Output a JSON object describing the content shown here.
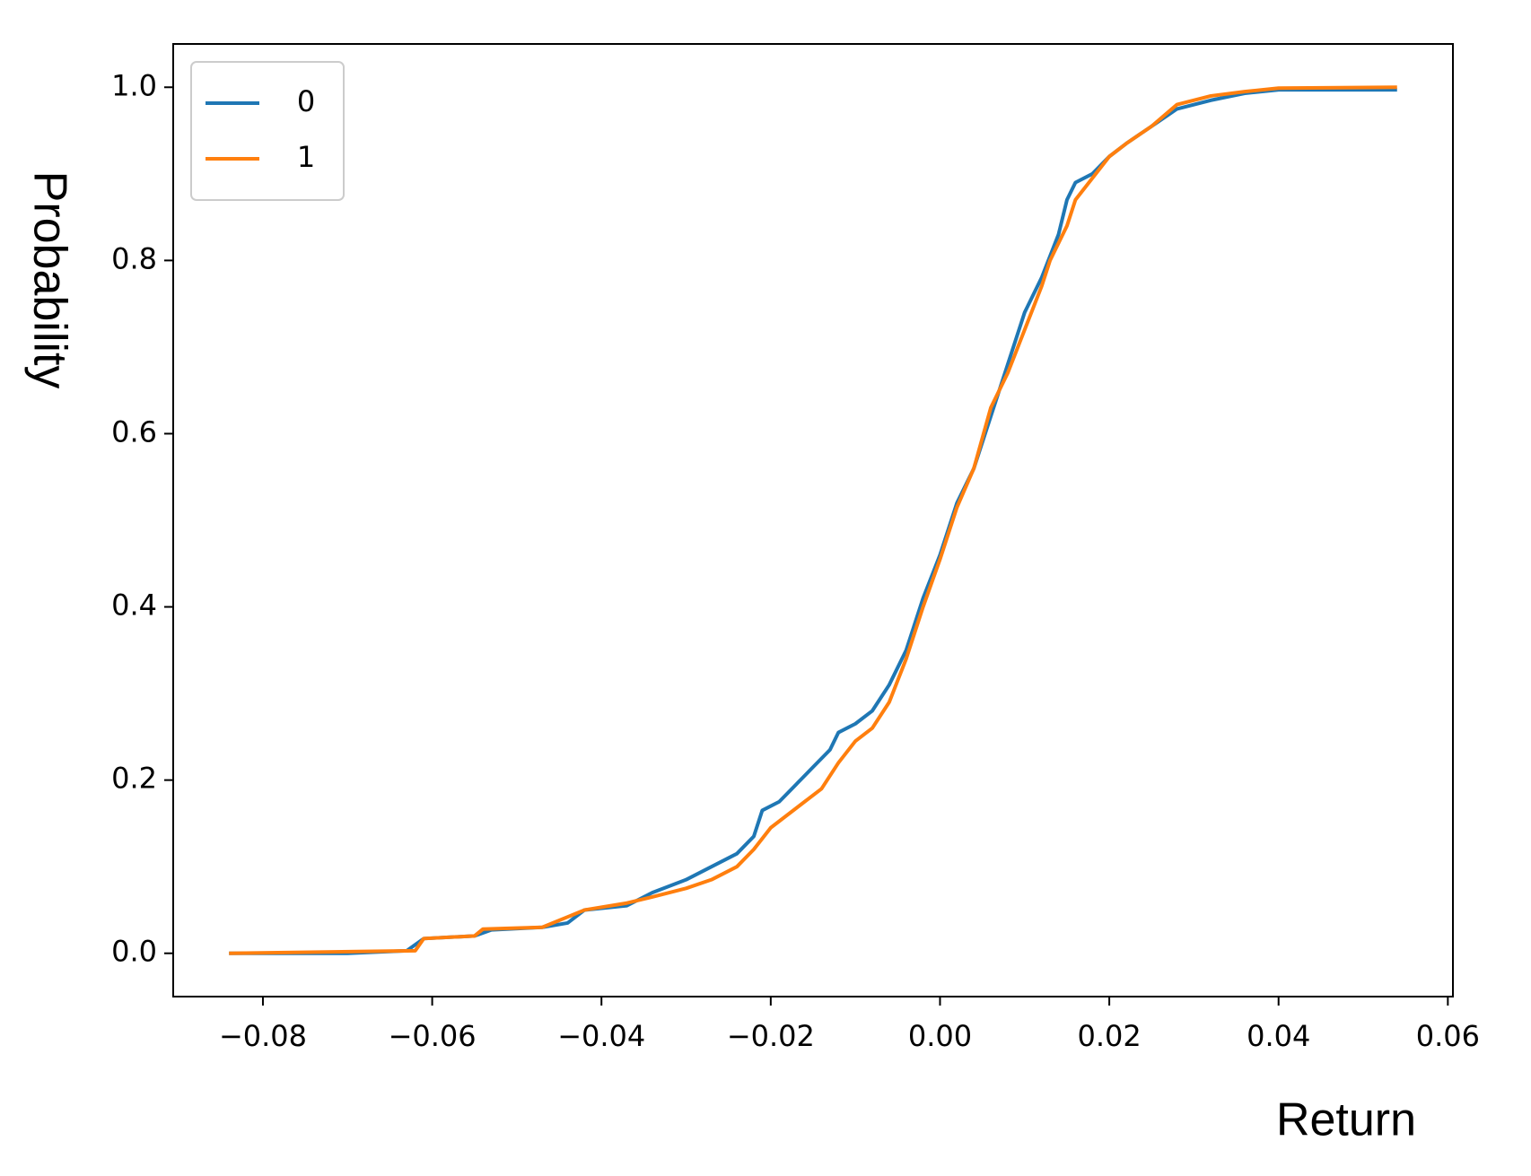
{
  "chart_data": {
    "type": "line",
    "xlabel": "Return",
    "ylabel": "Probability",
    "xlim": [
      -0.0906,
      0.0606
    ],
    "ylim": [
      -0.05,
      1.05
    ],
    "xticks": [
      {
        "value": -0.08,
        "label": "−0.08"
      },
      {
        "value": -0.06,
        "label": "−0.06"
      },
      {
        "value": -0.04,
        "label": "−0.04"
      },
      {
        "value": -0.02,
        "label": "−0.02"
      },
      {
        "value": 0,
        "label": "0.00"
      },
      {
        "value": 0.02,
        "label": "0.02"
      },
      {
        "value": 0.04,
        "label": "0.04"
      },
      {
        "value": 0.06,
        "label": "0.06"
      }
    ],
    "yticks": [
      {
        "value": 0,
        "label": "0.0"
      },
      {
        "value": 0.2,
        "label": "0.2"
      },
      {
        "value": 0.4,
        "label": "0.4"
      },
      {
        "value": 0.6,
        "label": "0.6"
      },
      {
        "value": 0.8,
        "label": "0.8"
      },
      {
        "value": 1,
        "label": "1.0"
      }
    ],
    "grid": false,
    "legend": "upper left",
    "series": [
      {
        "name": "0",
        "color": "#1f77b4",
        "x": [
          -0.084,
          -0.07,
          -0.063,
          -0.061,
          -0.055,
          -0.053,
          -0.047,
          -0.044,
          -0.042,
          -0.037,
          -0.034,
          -0.03,
          -0.027,
          -0.024,
          -0.022,
          -0.021,
          -0.019,
          -0.017,
          -0.015,
          -0.013,
          -0.012,
          -0.01,
          -0.008,
          -0.006,
          -0.004,
          -0.002,
          0,
          0.002,
          0.004,
          0.006,
          0.008,
          0.01,
          0.012,
          0.014,
          0.015,
          0.016,
          0.018,
          0.02,
          0.022,
          0.025,
          0.028,
          0.032,
          0.036,
          0.04,
          0.054
        ],
        "values": [
          0,
          0,
          0.003,
          0.017,
          0.02,
          0.027,
          0.03,
          0.035,
          0.05,
          0.055,
          0.07,
          0.085,
          0.1,
          0.115,
          0.135,
          0.165,
          0.175,
          0.195,
          0.215,
          0.235,
          0.255,
          0.265,
          0.28,
          0.31,
          0.35,
          0.41,
          0.46,
          0.52,
          0.56,
          0.62,
          0.68,
          0.74,
          0.78,
          0.83,
          0.87,
          0.89,
          0.9,
          0.92,
          0.935,
          0.955,
          0.975,
          0.985,
          0.993,
          0.997,
          0.997
        ]
      },
      {
        "name": "1",
        "color": "#ff7f0e",
        "x": [
          -0.084,
          -0.062,
          -0.061,
          -0.055,
          -0.054,
          -0.047,
          -0.042,
          -0.037,
          -0.034,
          -0.03,
          -0.027,
          -0.024,
          -0.022,
          -0.02,
          -0.018,
          -0.016,
          -0.014,
          -0.012,
          -0.01,
          -0.008,
          -0.006,
          -0.004,
          -0.002,
          0,
          0.002,
          0.004,
          0.006,
          0.008,
          0.01,
          0.012,
          0.013,
          0.015,
          0.016,
          0.018,
          0.02,
          0.022,
          0.025,
          0.028,
          0.032,
          0.036,
          0.04,
          0.054
        ],
        "values": [
          0,
          0.003,
          0.017,
          0.02,
          0.028,
          0.03,
          0.05,
          0.058,
          0.065,
          0.075,
          0.085,
          0.1,
          0.12,
          0.145,
          0.16,
          0.175,
          0.19,
          0.22,
          0.245,
          0.26,
          0.29,
          0.34,
          0.4,
          0.455,
          0.515,
          0.56,
          0.63,
          0.67,
          0.72,
          0.77,
          0.8,
          0.84,
          0.87,
          0.895,
          0.92,
          0.935,
          0.955,
          0.98,
          0.99,
          0.995,
          0.999,
          1.0
        ]
      }
    ]
  }
}
